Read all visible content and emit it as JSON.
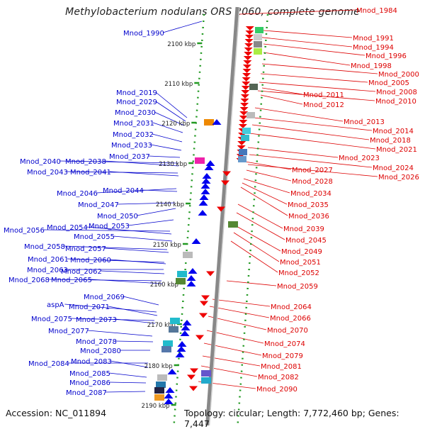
{
  "title": "Methylobacterium nodulans ORS 2060, complete genome",
  "accession": "Accession: NC_011894",
  "topology": "Topology: circular; Length: 7,772,460 bp; Genes: 7,447",
  "colors": {
    "left_labels": "#0000cc",
    "right_labels": "#dd0000",
    "backbone": "#888888",
    "ticks": "#229922"
  },
  "kbp_ticks": [
    "2100 kbp",
    "2110 kbp",
    "2120 kbp",
    "2130 kbp",
    "2140 kbp",
    "2150 kbp",
    "2160 kbp",
    "2170 kbp",
    "2180 kbp",
    "2190 kbp"
  ],
  "left_genes": [
    "Mnod_1990",
    "Mnod_2019",
    "Mnod_2029",
    "Mnod_2030",
    "Mnod_2031",
    "Mnod_2032",
    "Mnod_2033",
    "Mnod_2037",
    "Mnod_2040",
    "Mnod_2038",
    "Mnod_2043",
    "Mnod_2041",
    "Mnod_2046",
    "Mnod_2044",
    "Mnod_2047",
    "Mnod_2050",
    "Mnod_2053",
    "Mnod_2056",
    "Mnod_2054",
    "Mnod_2055",
    "Mnod_2058",
    "Mnod_2057",
    "Mnod_2061",
    "Mnod_2060",
    "Mnod_2063",
    "Mnod_2062",
    "Mnod_2068",
    "Mnod_2065",
    "Mnod_2069",
    "aspA",
    "Mnod_2071",
    "Mnod_2075",
    "Mnod_2073",
    "Mnod_2077",
    "Mnod_2078",
    "Mnod_2080",
    "Mnod_2084",
    "Mnod_2083",
    "Mnod_2085",
    "Mnod_2086",
    "Mnod_2087"
  ],
  "right_genes": [
    "Mnod_1984",
    "Mnod_1991",
    "Mnod_1994",
    "Mnod_1996",
    "Mnod_1998",
    "Mnod_2000",
    "Mnod_2005",
    "Mnod_2008",
    "Mnod_2011",
    "Mnod_2010",
    "Mnod_2012",
    "Mnod_2013",
    "Mnod_2014",
    "Mnod_2018",
    "Mnod_2021",
    "Mnod_2023",
    "Mnod_2024",
    "Mnod_2027",
    "Mnod_2026",
    "Mnod_2028",
    "Mnod_2034",
    "Mnod_2035",
    "Mnod_2036",
    "Mnod_2039",
    "Mnod_2045",
    "Mnod_2049",
    "Mnod_2051",
    "Mnod_2052",
    "Mnod_2059",
    "Mnod_2064",
    "Mnod_2066",
    "Mnod_2070",
    "Mnod_2074",
    "Mnod_2079",
    "Mnod_2081",
    "Mnod_2082",
    "Mnod_2090"
  ]
}
